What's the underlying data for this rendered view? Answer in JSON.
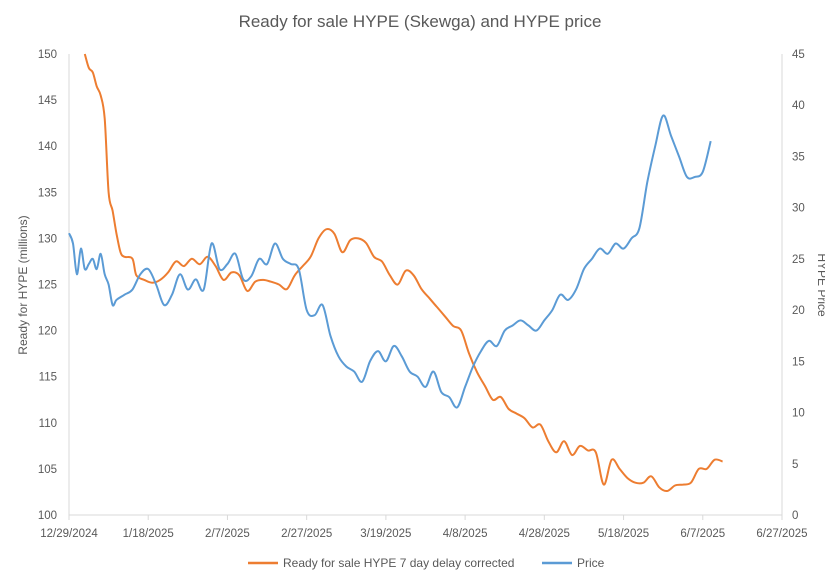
{
  "chart_data": {
    "type": "line",
    "title": "Ready for sale HYPE (Skewga) and HYPE price",
    "ylabel": "Ready for HYPE (millions)",
    "y2label": "HYPE Price",
    "x_tick_labels": [
      "12/29/2024",
      "1/18/2025",
      "2/7/2025",
      "2/27/2025",
      "3/19/2025",
      "4/8/2025",
      "4/28/2025",
      "5/18/2025",
      "6/7/2025",
      "6/27/2025"
    ],
    "xlim": [
      "2024-12-29",
      "2025-06-27"
    ],
    "ylim": [
      100,
      150
    ],
    "y_ticks": [
      100,
      105,
      110,
      115,
      120,
      125,
      130,
      135,
      140,
      145,
      150
    ],
    "y2lim": [
      0,
      45
    ],
    "y2_ticks": [
      0,
      5,
      10,
      15,
      20,
      25,
      30,
      35,
      40,
      45
    ],
    "grid": false,
    "legend_position": "bottom",
    "colors": {
      "supply": "#ED7D31",
      "price": "#5B9BD5",
      "text": "#595959",
      "axis": "#D9D9D9"
    },
    "series": [
      {
        "name": "Ready for sale HYPE 7 day delay corrected",
        "axis": "left",
        "points": [
          [
            "2025-01-02",
            150
          ],
          [
            "2025-01-03",
            148.5
          ],
          [
            "2025-01-04",
            148
          ],
          [
            "2025-01-05",
            146.5
          ],
          [
            "2025-01-06",
            145.5
          ],
          [
            "2025-01-07",
            143
          ],
          [
            "2025-01-08",
            135
          ],
          [
            "2025-01-09",
            133
          ],
          [
            "2025-01-10",
            130.5
          ],
          [
            "2025-01-11",
            128.5
          ],
          [
            "2025-01-12",
            128
          ],
          [
            "2025-01-14",
            127.8
          ],
          [
            "2025-01-15",
            126
          ],
          [
            "2025-01-17",
            125.5
          ],
          [
            "2025-01-19",
            125.2
          ],
          [
            "2025-01-21",
            125.5
          ],
          [
            "2025-01-23",
            126.3
          ],
          [
            "2025-01-25",
            127.5
          ],
          [
            "2025-01-27",
            127
          ],
          [
            "2025-01-29",
            127.8
          ],
          [
            "2025-01-31",
            127.2
          ],
          [
            "2025-02-02",
            128
          ],
          [
            "2025-02-04",
            127
          ],
          [
            "2025-02-06",
            125.5
          ],
          [
            "2025-02-08",
            126.3
          ],
          [
            "2025-02-10",
            126
          ],
          [
            "2025-02-12",
            124.3
          ],
          [
            "2025-02-14",
            125.3
          ],
          [
            "2025-02-16",
            125.5
          ],
          [
            "2025-02-18",
            125.3
          ],
          [
            "2025-02-20",
            125
          ],
          [
            "2025-02-22",
            124.5
          ],
          [
            "2025-02-24",
            126
          ],
          [
            "2025-02-26",
            127
          ],
          [
            "2025-02-28",
            128
          ],
          [
            "2025-03-02",
            130
          ],
          [
            "2025-03-04",
            131
          ],
          [
            "2025-03-06",
            130.5
          ],
          [
            "2025-03-08",
            128.5
          ],
          [
            "2025-03-10",
            129.8
          ],
          [
            "2025-03-12",
            130
          ],
          [
            "2025-03-14",
            129.5
          ],
          [
            "2025-03-16",
            128
          ],
          [
            "2025-03-18",
            127.5
          ],
          [
            "2025-03-20",
            126
          ],
          [
            "2025-03-22",
            125
          ],
          [
            "2025-03-24",
            126.5
          ],
          [
            "2025-03-26",
            126
          ],
          [
            "2025-03-28",
            124.5
          ],
          [
            "2025-03-30",
            123.5
          ],
          [
            "2025-04-01",
            122.5
          ],
          [
            "2025-04-03",
            121.5
          ],
          [
            "2025-04-05",
            120.5
          ],
          [
            "2025-04-07",
            120
          ],
          [
            "2025-04-09",
            117.5
          ],
          [
            "2025-04-11",
            115.5
          ],
          [
            "2025-04-13",
            114
          ],
          [
            "2025-04-15",
            112.5
          ],
          [
            "2025-04-17",
            112.8
          ],
          [
            "2025-04-19",
            111.5
          ],
          [
            "2025-04-21",
            111
          ],
          [
            "2025-04-23",
            110.5
          ],
          [
            "2025-04-25",
            109.5
          ],
          [
            "2025-04-27",
            109.8
          ],
          [
            "2025-04-29",
            108
          ],
          [
            "2025-05-01",
            106.8
          ],
          [
            "2025-05-03",
            108
          ],
          [
            "2025-05-05",
            106.5
          ],
          [
            "2025-05-07",
            107.5
          ],
          [
            "2025-05-09",
            107
          ],
          [
            "2025-05-11",
            106.8
          ],
          [
            "2025-05-13",
            103.3
          ],
          [
            "2025-05-15",
            106
          ],
          [
            "2025-05-17",
            105
          ],
          [
            "2025-05-19",
            104
          ],
          [
            "2025-05-21",
            103.5
          ],
          [
            "2025-05-23",
            103.5
          ],
          [
            "2025-05-25",
            104.2
          ],
          [
            "2025-05-27",
            103
          ],
          [
            "2025-05-29",
            102.6
          ],
          [
            "2025-05-31",
            103.2
          ],
          [
            "2025-06-02",
            103.3
          ],
          [
            "2025-06-04",
            103.5
          ],
          [
            "2025-06-06",
            105
          ],
          [
            "2025-06-08",
            105
          ],
          [
            "2025-06-10",
            106
          ],
          [
            "2025-06-12",
            105.8
          ]
        ]
      },
      {
        "name": "Price",
        "axis": "right",
        "points": [
          [
            "2024-12-29",
            27.5
          ],
          [
            "2024-12-30",
            26.5
          ],
          [
            "2024-12-31",
            23.5
          ],
          [
            "2025-01-01",
            26
          ],
          [
            "2025-01-02",
            24
          ],
          [
            "2025-01-03",
            24.5
          ],
          [
            "2025-01-04",
            25
          ],
          [
            "2025-01-05",
            24
          ],
          [
            "2025-01-06",
            25.5
          ],
          [
            "2025-01-07",
            23.5
          ],
          [
            "2025-01-08",
            22.5
          ],
          [
            "2025-01-09",
            20.5
          ],
          [
            "2025-01-10",
            21
          ],
          [
            "2025-01-12",
            21.5
          ],
          [
            "2025-01-14",
            22
          ],
          [
            "2025-01-16",
            23.5
          ],
          [
            "2025-01-18",
            24
          ],
          [
            "2025-01-20",
            22.5
          ],
          [
            "2025-01-22",
            20.5
          ],
          [
            "2025-01-24",
            21.5
          ],
          [
            "2025-01-26",
            23.5
          ],
          [
            "2025-01-28",
            22
          ],
          [
            "2025-01-30",
            23
          ],
          [
            "2025-02-01",
            22
          ],
          [
            "2025-02-03",
            26.5
          ],
          [
            "2025-02-05",
            24
          ],
          [
            "2025-02-07",
            24.5
          ],
          [
            "2025-02-09",
            25.5
          ],
          [
            "2025-02-11",
            23
          ],
          [
            "2025-02-13",
            23.3
          ],
          [
            "2025-02-15",
            25
          ],
          [
            "2025-02-17",
            24.5
          ],
          [
            "2025-02-19",
            26.5
          ],
          [
            "2025-02-21",
            25
          ],
          [
            "2025-02-23",
            24.5
          ],
          [
            "2025-02-25",
            24
          ],
          [
            "2025-02-27",
            20
          ],
          [
            "2025-03-01",
            19.5
          ],
          [
            "2025-03-03",
            20.5
          ],
          [
            "2025-03-05",
            17.5
          ],
          [
            "2025-03-07",
            15.5
          ],
          [
            "2025-03-09",
            14.5
          ],
          [
            "2025-03-11",
            14
          ],
          [
            "2025-03-13",
            13
          ],
          [
            "2025-03-15",
            15
          ],
          [
            "2025-03-17",
            16
          ],
          [
            "2025-03-19",
            15
          ],
          [
            "2025-03-21",
            16.5
          ],
          [
            "2025-03-23",
            15.5
          ],
          [
            "2025-03-25",
            14
          ],
          [
            "2025-03-27",
            13.5
          ],
          [
            "2025-03-29",
            12.5
          ],
          [
            "2025-03-31",
            14
          ],
          [
            "2025-04-02",
            12
          ],
          [
            "2025-04-04",
            11.5
          ],
          [
            "2025-04-06",
            10.5
          ],
          [
            "2025-04-08",
            12.5
          ],
          [
            "2025-04-10",
            14.5
          ],
          [
            "2025-04-12",
            16
          ],
          [
            "2025-04-14",
            17
          ],
          [
            "2025-04-16",
            16.5
          ],
          [
            "2025-04-18",
            18
          ],
          [
            "2025-04-20",
            18.5
          ],
          [
            "2025-04-22",
            19
          ],
          [
            "2025-04-24",
            18.5
          ],
          [
            "2025-04-26",
            18
          ],
          [
            "2025-04-28",
            19
          ],
          [
            "2025-04-30",
            20
          ],
          [
            "2025-05-02",
            21.5
          ],
          [
            "2025-05-04",
            21
          ],
          [
            "2025-05-06",
            22
          ],
          [
            "2025-05-08",
            24
          ],
          [
            "2025-05-10",
            25
          ],
          [
            "2025-05-12",
            26
          ],
          [
            "2025-05-14",
            25.5
          ],
          [
            "2025-05-16",
            26.5
          ],
          [
            "2025-05-18",
            26
          ],
          [
            "2025-05-20",
            27
          ],
          [
            "2025-05-22",
            28
          ],
          [
            "2025-05-24",
            32.5
          ],
          [
            "2025-05-26",
            36
          ],
          [
            "2025-05-28",
            39
          ],
          [
            "2025-05-30",
            37
          ],
          [
            "2025-06-01",
            35
          ],
          [
            "2025-06-03",
            33
          ],
          [
            "2025-06-05",
            33
          ],
          [
            "2025-06-07",
            33.5
          ],
          [
            "2025-06-09",
            36.5
          ]
        ]
      }
    ]
  }
}
